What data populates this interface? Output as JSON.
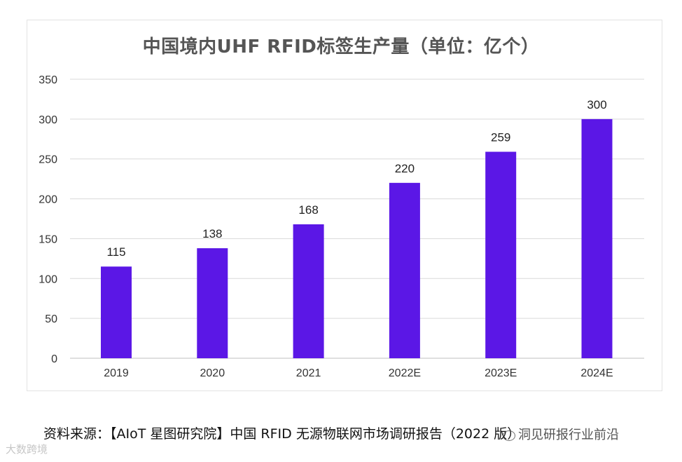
{
  "chart_data": {
    "type": "bar",
    "title": "中国境内UHF RFID标签生产量（单位：亿个）",
    "categories": [
      "2019",
      "2020",
      "2021",
      "2022E",
      "2023E",
      "2024E"
    ],
    "values": [
      115,
      138,
      168,
      220,
      259,
      300
    ],
    "data_labels": [
      "115",
      "138",
      "168",
      "220",
      "259",
      "300"
    ],
    "ylim": [
      0,
      350
    ],
    "yticks": [
      0,
      50,
      100,
      150,
      200,
      250,
      300,
      350
    ],
    "ytick_labels": [
      "0",
      "50",
      "100",
      "150",
      "200",
      "250",
      "300",
      "350"
    ],
    "xlabel": "",
    "ylabel": "",
    "grid": true,
    "bar_color": "#5b17e6",
    "grid_color": "#d9d9d9"
  },
  "source": "资料来源：【AIoT 星图研究院】中国 RFID 无源物联网市场调研报告（2022 版）",
  "wechat_tag": "洞见研报行业前沿",
  "bottom_mark": "大数跨境"
}
